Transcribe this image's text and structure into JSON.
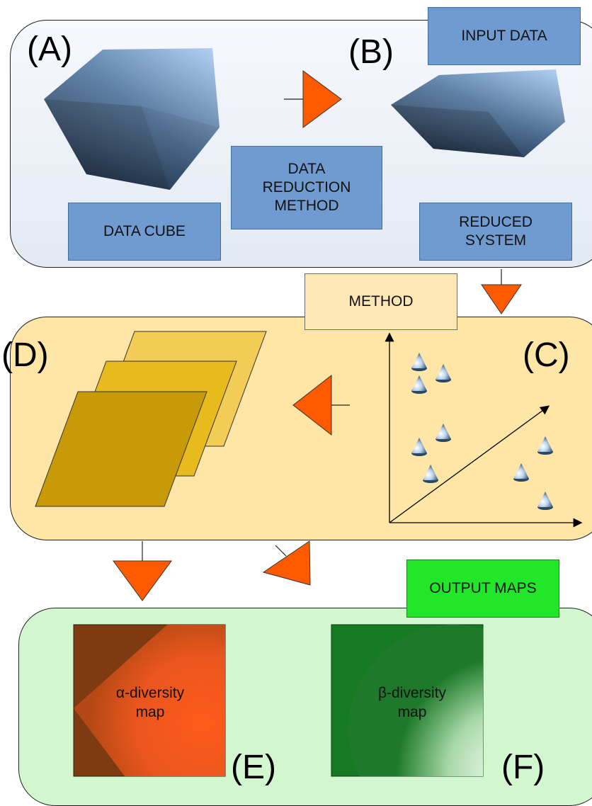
{
  "panel_a": {
    "letter_a": "(A)",
    "letter_b": "(B)",
    "input_label": "INPUT DATA",
    "cube_label": "DATA CUBE",
    "method_label": "DATA\nREDUCTION\nMETHOD",
    "reduced_label": "REDUCED\nSYSTEM"
  },
  "panel_b": {
    "method_label": "METHOD",
    "letter_d": "(D)",
    "letter_c": "(C)"
  },
  "panel_c": {
    "output_label": "OUTPUT MAPS",
    "alpha_label": "α-diversity\nmap",
    "beta_label": "β-diversity\nmap",
    "letter_e": "(E)",
    "letter_f": "(F)"
  },
  "colors": {
    "arrow": "#ff5a00",
    "box_blue": "#6f9bd0",
    "panel_a_bg": "#edf1f8",
    "panel_b_bg": "#ffe6a6",
    "panel_c_bg": "#d2f7cf",
    "output_green": "#22e62a",
    "method_box": "#fde8b5"
  }
}
